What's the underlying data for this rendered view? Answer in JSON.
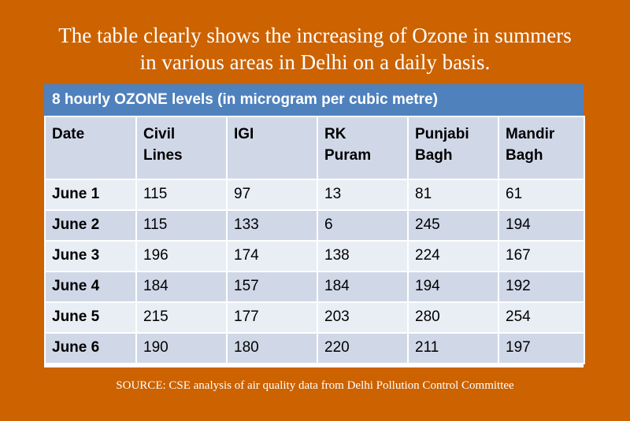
{
  "headline": {
    "line1": "The table clearly shows the increasing of Ozone in summers",
    "line2": "in various areas in Delhi on a daily basis."
  },
  "table": {
    "title": "8 hourly OZONE levels (in microgram per cubic metre)",
    "headers": [
      {
        "line1": "Date",
        "line2": ""
      },
      {
        "line1": "Civil",
        "line2": "Lines"
      },
      {
        "line1": "IGI",
        "line2": ""
      },
      {
        "line1": "RK",
        "line2": "Puram"
      },
      {
        "line1": "Punjabi",
        "line2": "Bagh"
      },
      {
        "line1": "Mandir",
        "line2": "Bagh"
      }
    ],
    "rows": [
      [
        "June 1",
        "115",
        "97",
        "13",
        "81",
        "61"
      ],
      [
        "June 2",
        "115",
        "133",
        "6",
        "245",
        "194"
      ],
      [
        "June 3",
        "196",
        "174",
        "138",
        "224",
        "167"
      ],
      [
        "June 4",
        "184",
        "157",
        "184",
        "194",
        "192"
      ],
      [
        "June 5",
        "215",
        "177",
        "203",
        "280",
        "254"
      ],
      [
        "June 6",
        "190",
        "180",
        "220",
        "211",
        "197"
      ]
    ]
  },
  "source": "SOURCE: CSE analysis of air quality data from Delhi Pollution Control Committee",
  "colors": {
    "background": "#cc6200",
    "title_bar": "#4f81bd",
    "row_light": "#e9edf4",
    "row_dark": "#d0d8e8"
  }
}
